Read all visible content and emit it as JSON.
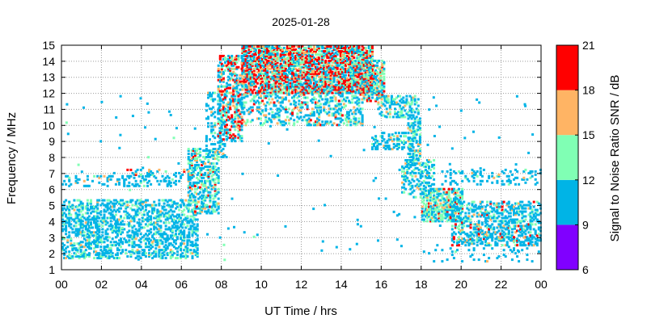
{
  "chart_data": {
    "type": "heatmap",
    "title": "2025-01-28",
    "xlabel": "UT Time / hrs",
    "ylabel": "Frequency / MHz",
    "colorbar_label": "Signal to Noise Ratio SNR / dB",
    "xlim": [
      0,
      24
    ],
    "ylim": [
      1,
      15
    ],
    "x_ticks": [
      "00",
      "02",
      "04",
      "06",
      "08",
      "10",
      "12",
      "14",
      "16",
      "18",
      "20",
      "22",
      "00"
    ],
    "y_ticks": [
      "1",
      "2",
      "3",
      "4",
      "5",
      "6",
      "7",
      "8",
      "9",
      "10",
      "11",
      "12",
      "13",
      "14",
      "15"
    ],
    "grid": true,
    "colorbar": {
      "ticks": [
        "6",
        "9",
        "12",
        "15",
        "18",
        "21"
      ],
      "bands": [
        {
          "from": 6,
          "to": 9,
          "color": "#8000ff"
        },
        {
          "from": 9,
          "to": 12,
          "color": "#00b4e6"
        },
        {
          "from": 12,
          "to": 15,
          "color": "#80ffb4"
        },
        {
          "from": 15,
          "to": 18,
          "color": "#ffb464"
        },
        {
          "from": 18,
          "to": 21,
          "color": "#ff0000"
        }
      ]
    },
    "regions": [
      {
        "t0": 0.0,
        "t1": 6.8,
        "f0": 1.7,
        "f1": 5.3,
        "density": 0.38,
        "weights": [
          0,
          0.8,
          0.17,
          0.03,
          0
        ]
      },
      {
        "t0": 0.0,
        "t1": 6.0,
        "f0": 6.2,
        "f1": 6.8,
        "density": 0.22,
        "weights": [
          0,
          0.85,
          0.1,
          0.05,
          0
        ]
      },
      {
        "t0": 2.5,
        "t1": 6.8,
        "f0": 6.8,
        "f1": 7.2,
        "density": 0.18,
        "weights": [
          0,
          0.7,
          0.1,
          0.1,
          0.1
        ]
      },
      {
        "t0": 6.3,
        "t1": 7.8,
        "f0": 4.5,
        "f1": 8.5,
        "density": 0.4,
        "weights": [
          0,
          0.55,
          0.3,
          0.1,
          0.05
        ]
      },
      {
        "t0": 7.2,
        "t1": 8.2,
        "f0": 8.0,
        "f1": 12.0,
        "density": 0.25,
        "weights": [
          0,
          0.8,
          0.15,
          0.05,
          0
        ]
      },
      {
        "t0": 7.8,
        "t1": 9.0,
        "f0": 9.0,
        "f1": 14.3,
        "density": 0.45,
        "weights": [
          0,
          0.4,
          0.2,
          0.15,
          0.25
        ]
      },
      {
        "t0": 9.0,
        "t1": 15.5,
        "f0": 12.0,
        "f1": 15.0,
        "density": 0.7,
        "weights": [
          0,
          0.3,
          0.2,
          0.15,
          0.35
        ]
      },
      {
        "t0": 9.0,
        "t1": 15.0,
        "f0": 10.0,
        "f1": 12.0,
        "density": 0.3,
        "weights": [
          0,
          0.6,
          0.25,
          0.1,
          0.05
        ]
      },
      {
        "t0": 15.0,
        "t1": 16.1,
        "f0": 11.5,
        "f1": 14.0,
        "density": 0.55,
        "weights": [
          0,
          0.45,
          0.3,
          0.15,
          0.1
        ]
      },
      {
        "t0": 15.8,
        "t1": 17.8,
        "f0": 10.5,
        "f1": 11.8,
        "density": 0.35,
        "weights": [
          0,
          0.65,
          0.25,
          0.1,
          0
        ]
      },
      {
        "t0": 17.3,
        "t1": 17.9,
        "f0": 7.5,
        "f1": 10.5,
        "density": 0.45,
        "weights": [
          0,
          0.65,
          0.25,
          0.1,
          0
        ]
      },
      {
        "t0": 15.5,
        "t1": 17.5,
        "f0": 8.5,
        "f1": 9.5,
        "density": 0.3,
        "weights": [
          0,
          0.8,
          0.15,
          0.05,
          0
        ]
      },
      {
        "t0": 17.0,
        "t1": 18.6,
        "f0": 5.5,
        "f1": 7.8,
        "density": 0.28,
        "weights": [
          0,
          0.7,
          0.25,
          0.05,
          0
        ]
      },
      {
        "t0": 18.0,
        "t1": 20.0,
        "f0": 4.0,
        "f1": 6.0,
        "density": 0.55,
        "weights": [
          0,
          0.45,
          0.35,
          0.12,
          0.08
        ]
      },
      {
        "t0": 19.5,
        "t1": 24.0,
        "f0": 2.5,
        "f1": 5.2,
        "density": 0.4,
        "weights": [
          0,
          0.75,
          0.12,
          0.08,
          0.05
        ]
      },
      {
        "t0": 19.0,
        "t1": 24.0,
        "f0": 6.3,
        "f1": 7.2,
        "density": 0.18,
        "weights": [
          0,
          0.85,
          0.1,
          0.05,
          0
        ]
      },
      {
        "t0": 18.0,
        "t1": 24.0,
        "f0": 1.5,
        "f1": 2.6,
        "density": 0.08,
        "weights": [
          0,
          0.9,
          0.05,
          0.05,
          0
        ]
      }
    ],
    "sparse": {
      "count": 140,
      "f0": 1.5,
      "f1": 12.0,
      "weights": [
        0,
        0.9,
        0.07,
        0.03,
        0
      ]
    }
  }
}
